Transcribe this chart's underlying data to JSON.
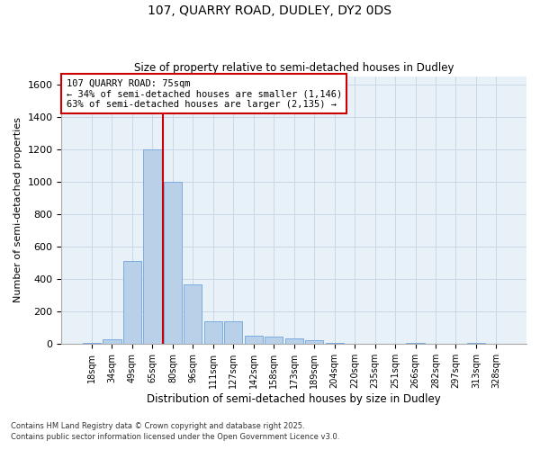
{
  "title1": "107, QUARRY ROAD, DUDLEY, DY2 0DS",
  "title2": "Size of property relative to semi-detached houses in Dudley",
  "xlabel": "Distribution of semi-detached houses by size in Dudley",
  "ylabel": "Number of semi-detached properties",
  "categories": [
    "18sqm",
    "34sqm",
    "49sqm",
    "65sqm",
    "80sqm",
    "96sqm",
    "111sqm",
    "127sqm",
    "142sqm",
    "158sqm",
    "173sqm",
    "189sqm",
    "204sqm",
    "220sqm",
    "235sqm",
    "251sqm",
    "266sqm",
    "282sqm",
    "297sqm",
    "313sqm",
    "328sqm"
  ],
  "values": [
    10,
    30,
    510,
    1200,
    1000,
    370,
    140,
    140,
    50,
    45,
    35,
    25,
    10,
    0,
    0,
    0,
    10,
    0,
    0,
    5,
    0
  ],
  "bar_color": "#b8d0e8",
  "bar_edge_color": "#7aabe0",
  "vline_x_index": 3.5,
  "annotation_text": "107 QUARRY ROAD: 75sqm\n← 34% of semi-detached houses are smaller (1,146)\n63% of semi-detached houses are larger (2,135) →",
  "vline_color": "#cc0000",
  "box_edge_color": "#cc0000",
  "ylim": [
    0,
    1650
  ],
  "yticks": [
    0,
    200,
    400,
    600,
    800,
    1000,
    1200,
    1400,
    1600
  ],
  "grid_color": "#c8d8e8",
  "background_color": "#e8f0f8",
  "footer1": "Contains HM Land Registry data © Crown copyright and database right 2025.",
  "footer2": "Contains public sector information licensed under the Open Government Licence v3.0."
}
